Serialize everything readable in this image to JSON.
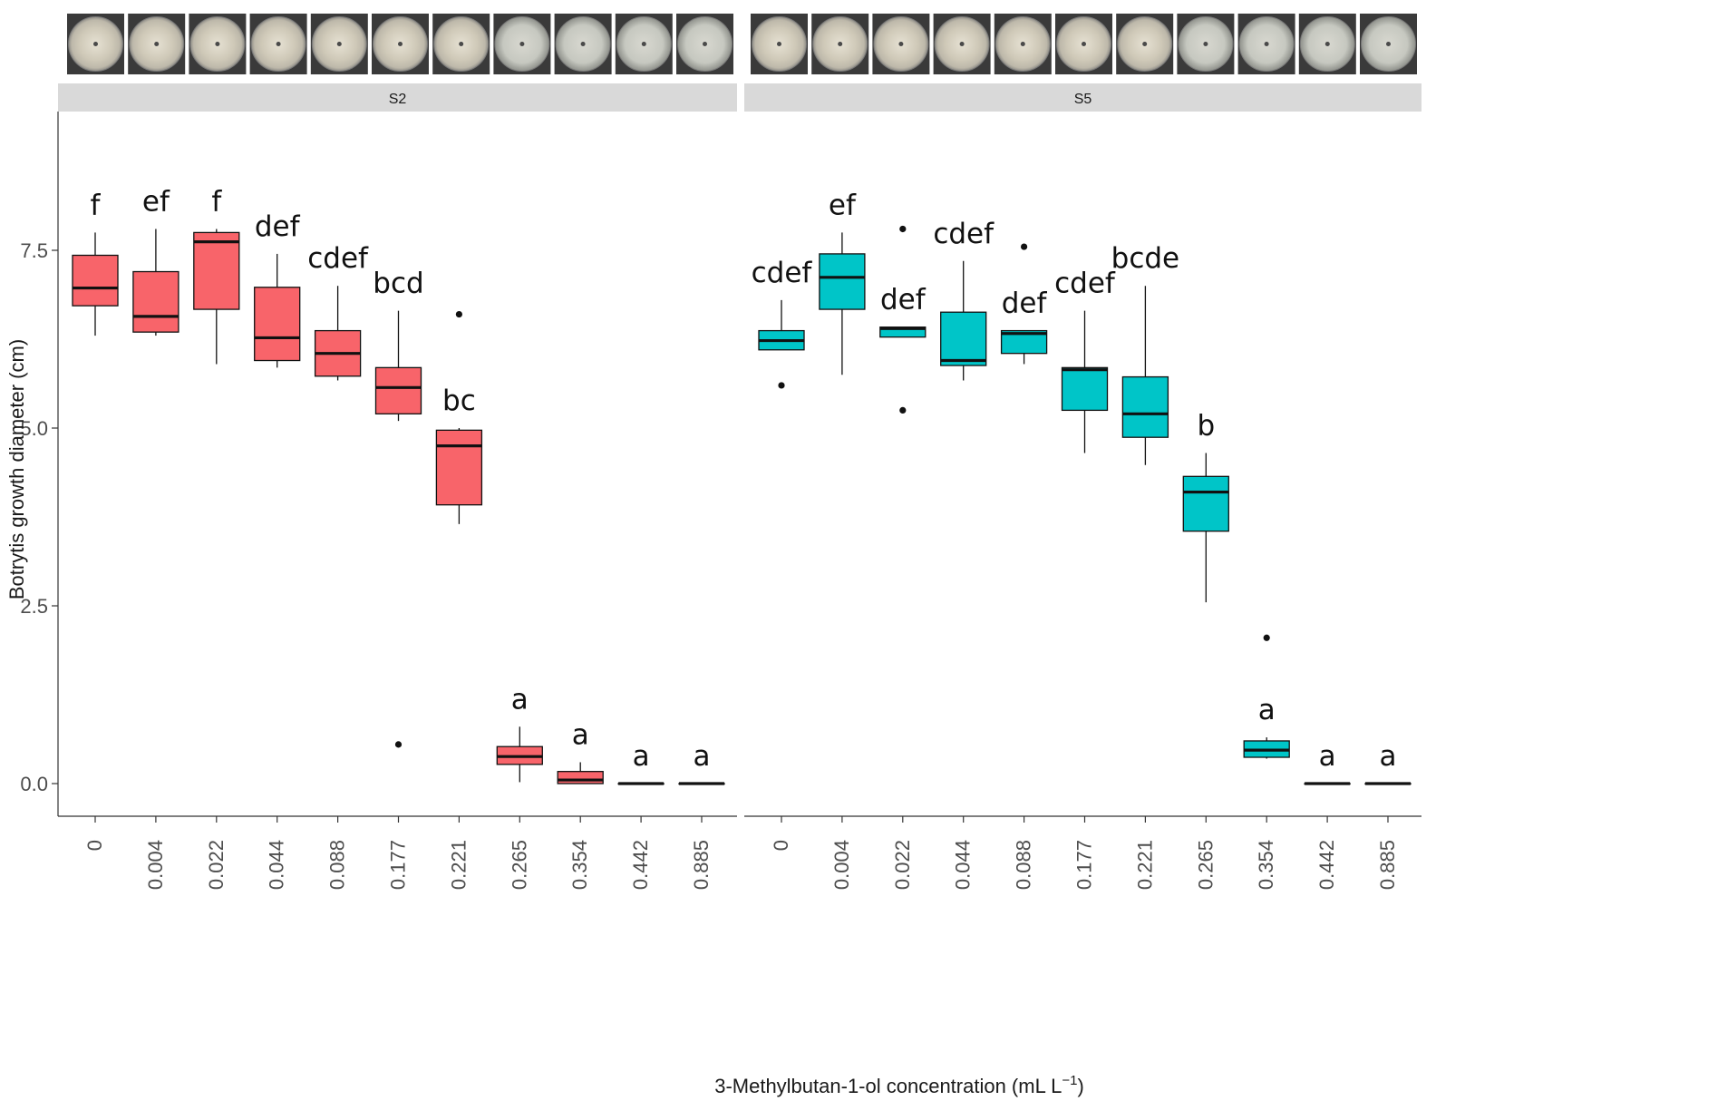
{
  "chart_data": {
    "type": "box",
    "ylabel": "Botrytis growth diameter (cm)",
    "xlabel": {
      "main": "3-Methylbutan-1-ol concentration (mL L",
      "sup": "−1",
      "close": ")"
    },
    "ylim": [
      -0.45,
      9.3
    ],
    "yticks": [
      "0.0",
      "2.5",
      "5.0",
      "7.5"
    ],
    "categories": [
      "0",
      "0.004",
      "0.022",
      "0.044",
      "0.088",
      "0.177",
      "0.221",
      "0.265",
      "0.354",
      "0.442",
      "0.885"
    ],
    "grid": false,
    "panels": [
      {
        "name": "S2",
        "color": "#f8646a",
        "boxes": [
          {
            "min": 6.3,
            "q1": 6.72,
            "median": 6.97,
            "q3": 7.43,
            "max": 7.75,
            "outliers": [],
            "letter": "f"
          },
          {
            "min": 6.3,
            "q1": 6.35,
            "median": 6.57,
            "q3": 7.2,
            "max": 7.8,
            "outliers": [],
            "letter": "ef"
          },
          {
            "min": 5.9,
            "q1": 6.67,
            "median": 7.62,
            "q3": 7.75,
            "max": 7.8,
            "outliers": [],
            "letter": "f"
          },
          {
            "min": 5.85,
            "q1": 5.95,
            "median": 6.27,
            "q3": 6.98,
            "max": 7.45,
            "outliers": [],
            "letter": "def"
          },
          {
            "min": 5.67,
            "q1": 5.73,
            "median": 6.05,
            "q3": 6.37,
            "max": 7.0,
            "outliers": [],
            "letter": "cdef"
          },
          {
            "min": 5.1,
            "q1": 5.2,
            "median": 5.57,
            "q3": 5.85,
            "max": 6.65,
            "outliers": [
              0.55
            ],
            "letter": "bcd"
          },
          {
            "min": 3.65,
            "q1": 3.92,
            "median": 4.75,
            "q3": 4.97,
            "max": 5.0,
            "outliers": [
              6.6
            ],
            "letter": "bc"
          },
          {
            "min": 0.02,
            "q1": 0.27,
            "median": 0.38,
            "q3": 0.52,
            "max": 0.8,
            "outliers": [],
            "letter": "a"
          },
          {
            "min": 0.0,
            "q1": 0.0,
            "median": 0.05,
            "q3": 0.17,
            "max": 0.3,
            "outliers": [],
            "letter": "a"
          },
          {
            "min": 0.0,
            "q1": 0.0,
            "median": 0.0,
            "q3": 0.0,
            "max": 0.0,
            "outliers": [],
            "letter": "a"
          },
          {
            "min": 0.0,
            "q1": 0.0,
            "median": 0.0,
            "q3": 0.0,
            "max": 0.0,
            "outliers": [],
            "letter": "a"
          }
        ]
      },
      {
        "name": "S5",
        "color": "#00c5c8",
        "boxes": [
          {
            "min": 6.1,
            "q1": 6.1,
            "median": 6.23,
            "q3": 6.37,
            "max": 6.8,
            "outliers": [
              5.6
            ],
            "letter": "cdef"
          },
          {
            "min": 5.75,
            "q1": 6.67,
            "median": 7.12,
            "q3": 7.45,
            "max": 7.75,
            "outliers": [],
            "letter": "ef"
          },
          {
            "min": 6.28,
            "q1": 6.28,
            "median": 6.4,
            "q3": 6.42,
            "max": 6.42,
            "outliers": [
              7.8,
              5.25
            ],
            "letter": "def"
          },
          {
            "min": 5.67,
            "q1": 5.88,
            "median": 5.95,
            "q3": 6.63,
            "max": 7.35,
            "outliers": [],
            "letter": "cdef"
          },
          {
            "min": 5.9,
            "q1": 6.05,
            "median": 6.33,
            "q3": 6.37,
            "max": 6.37,
            "outliers": [
              7.55
            ],
            "letter": "def"
          },
          {
            "min": 4.65,
            "q1": 5.25,
            "median": 5.82,
            "q3": 5.85,
            "max": 6.65,
            "outliers": [],
            "letter": "cdef"
          },
          {
            "min": 4.48,
            "q1": 4.87,
            "median": 5.2,
            "q3": 5.72,
            "max": 7.0,
            "outliers": [],
            "letter": "bcde"
          },
          {
            "min": 2.55,
            "q1": 3.55,
            "median": 4.1,
            "q3": 4.32,
            "max": 4.65,
            "outliers": [],
            "letter": "b"
          },
          {
            "min": 0.35,
            "q1": 0.37,
            "median": 0.47,
            "q3": 0.6,
            "max": 0.65,
            "outliers": [
              2.05
            ],
            "letter": "a"
          },
          {
            "min": 0.0,
            "q1": 0.0,
            "median": 0.0,
            "q3": 0.0,
            "max": 0.0,
            "outliers": [],
            "letter": "a"
          },
          {
            "min": 0.0,
            "q1": 0.0,
            "median": 0.0,
            "q3": 0.0,
            "max": 0.0,
            "outliers": [],
            "letter": "a"
          }
        ]
      }
    ]
  }
}
